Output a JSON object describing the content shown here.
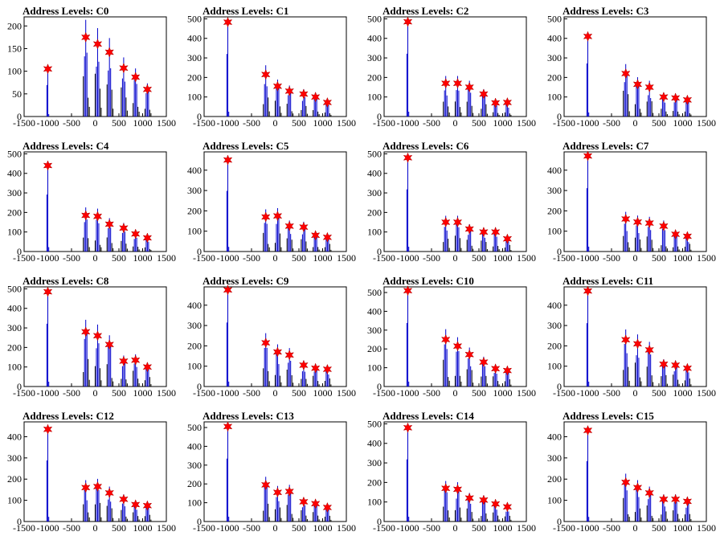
{
  "figure": {
    "grid": "4x4",
    "marker_color": "#ff0000",
    "bar_color": "#0000cc",
    "background": "#ffffff"
  },
  "chart_data": [
    {
      "type": "bar",
      "title": "Address Levels: C0",
      "xlim": [
        -1500,
        1500
      ],
      "ylim": [
        0,
        220
      ],
      "yticks": [
        0,
        50,
        100,
        150,
        200
      ],
      "x": [
        -1000,
        -200,
        50,
        300,
        600,
        850,
        1100
      ],
      "values": [
        105,
        175,
        160,
        142,
        107,
        87,
        60
      ]
    },
    {
      "type": "bar",
      "title": "Address Levels: C1",
      "xlim": [
        -1500,
        1500
      ],
      "ylim": [
        0,
        510
      ],
      "yticks": [
        0,
        100,
        200,
        300,
        400,
        500
      ],
      "x": [
        -1000,
        -200,
        50,
        300,
        600,
        850,
        1100
      ],
      "values": [
        483,
        215,
        155,
        130,
        115,
        100,
        72
      ]
    },
    {
      "type": "bar",
      "title": "Address Levels: C2",
      "xlim": [
        -1500,
        1500
      ],
      "ylim": [
        0,
        510
      ],
      "yticks": [
        0,
        100,
        200,
        300,
        400,
        500
      ],
      "x": [
        -1000,
        -200,
        50,
        300,
        600,
        850,
        1100
      ],
      "values": [
        485,
        170,
        170,
        150,
        115,
        70,
        72
      ]
    },
    {
      "type": "bar",
      "title": "Address Levels: C3",
      "xlim": [
        -1500,
        1500
      ],
      "ylim": [
        0,
        510
      ],
      "yticks": [
        0,
        100,
        200,
        300,
        400,
        500
      ],
      "x": [
        -1000,
        -200,
        50,
        300,
        600,
        850,
        1100
      ],
      "values": [
        410,
        220,
        165,
        150,
        100,
        95,
        85
      ]
    },
    {
      "type": "bar",
      "title": "Address Levels: C4",
      "xlim": [
        -1500,
        1500
      ],
      "ylim": [
        0,
        510
      ],
      "yticks": [
        0,
        100,
        200,
        300,
        400,
        500
      ],
      "x": [
        -1000,
        -200,
        50,
        300,
        600,
        850,
        1100
      ],
      "values": [
        440,
        185,
        180,
        140,
        120,
        90,
        70
      ]
    },
    {
      "type": "bar",
      "title": "Address Levels: C5",
      "xlim": [
        -1500,
        1500
      ],
      "ylim": [
        0,
        490
      ],
      "yticks": [
        0,
        100,
        200,
        300,
        400
      ],
      "x": [
        -1000,
        -200,
        50,
        300,
        600,
        850,
        1100
      ],
      "values": [
        450,
        170,
        175,
        125,
        120,
        80,
        70
      ]
    },
    {
      "type": "bar",
      "title": "Address Levels: C6",
      "xlim": [
        -1500,
        1500
      ],
      "ylim": [
        0,
        510
      ],
      "yticks": [
        0,
        100,
        200,
        300,
        400,
        500
      ],
      "x": [
        -1000,
        -200,
        50,
        300,
        600,
        850,
        1100
      ],
      "values": [
        480,
        150,
        150,
        115,
        100,
        100,
        65
      ]
    },
    {
      "type": "bar",
      "title": "Address Levels: C7",
      "xlim": [
        -1500,
        1500
      ],
      "ylim": [
        0,
        490
      ],
      "yticks": [
        0,
        100,
        200,
        300,
        400
      ],
      "x": [
        -1000,
        -200,
        50,
        300,
        600,
        850,
        1100
      ],
      "values": [
        470,
        160,
        145,
        140,
        125,
        85,
        75
      ]
    },
    {
      "type": "bar",
      "title": "Address Levels: C8",
      "xlim": [
        -1500,
        1500
      ],
      "ylim": [
        0,
        510
      ],
      "yticks": [
        0,
        100,
        200,
        300,
        400,
        500
      ],
      "x": [
        -1000,
        -200,
        50,
        300,
        600,
        850,
        1100
      ],
      "values": [
        485,
        280,
        260,
        215,
        130,
        135,
        100
      ]
    },
    {
      "type": "bar",
      "title": "Address Levels: C9",
      "xlim": [
        -1500,
        1500
      ],
      "ylim": [
        0,
        490
      ],
      "yticks": [
        0,
        100,
        200,
        300,
        400
      ],
      "x": [
        -1000,
        -200,
        50,
        300,
        600,
        850,
        1100
      ],
      "values": [
        475,
        215,
        170,
        155,
        105,
        90,
        85
      ]
    },
    {
      "type": "bar",
      "title": "Address Levels: C10",
      "xlim": [
        -1500,
        1500
      ],
      "ylim": [
        0,
        530
      ],
      "yticks": [
        0,
        100,
        200,
        300,
        400,
        500
      ],
      "x": [
        -1000,
        -200,
        50,
        300,
        600,
        850,
        1100
      ],
      "values": [
        510,
        250,
        215,
        170,
        130,
        95,
        85
      ]
    },
    {
      "type": "bar",
      "title": "Address Levels: C11",
      "xlim": [
        -1500,
        1500
      ],
      "ylim": [
        0,
        490
      ],
      "yticks": [
        0,
        100,
        200,
        300,
        400
      ],
      "x": [
        -1000,
        -200,
        50,
        300,
        600,
        850,
        1100
      ],
      "values": [
        470,
        230,
        210,
        180,
        110,
        105,
        90
      ]
    },
    {
      "type": "bar",
      "title": "Address Levels: C12",
      "xlim": [
        -1500,
        1500
      ],
      "ylim": [
        0,
        470
      ],
      "yticks": [
        0,
        100,
        200,
        300,
        400
      ],
      "x": [
        -1000,
        -200,
        50,
        300,
        600,
        850,
        1100
      ],
      "values": [
        435,
        160,
        165,
        135,
        105,
        80,
        75
      ]
    },
    {
      "type": "bar",
      "title": "Address Levels: C13",
      "xlim": [
        -1500,
        1500
      ],
      "ylim": [
        0,
        530
      ],
      "yticks": [
        0,
        100,
        200,
        300,
        400,
        500
      ],
      "x": [
        -1000,
        -200,
        50,
        300,
        600,
        850,
        1100
      ],
      "values": [
        505,
        195,
        155,
        160,
        105,
        95,
        75
      ]
    },
    {
      "type": "bar",
      "title": "Address Levels: C14",
      "xlim": [
        -1500,
        1500
      ],
      "ylim": [
        0,
        510
      ],
      "yticks": [
        0,
        100,
        200,
        300,
        400,
        500
      ],
      "x": [
        -1000,
        -200,
        50,
        300,
        600,
        850,
        1100
      ],
      "values": [
        480,
        170,
        165,
        120,
        110,
        90,
        75
      ]
    },
    {
      "type": "bar",
      "title": "Address Levels: C15",
      "xlim": [
        -1500,
        1500
      ],
      "ylim": [
        0,
        470
      ],
      "yticks": [
        0,
        100,
        200,
        300,
        400
      ],
      "x": [
        -1000,
        -200,
        50,
        300,
        600,
        850,
        1100
      ],
      "values": [
        430,
        185,
        160,
        135,
        105,
        105,
        95
      ]
    }
  ]
}
